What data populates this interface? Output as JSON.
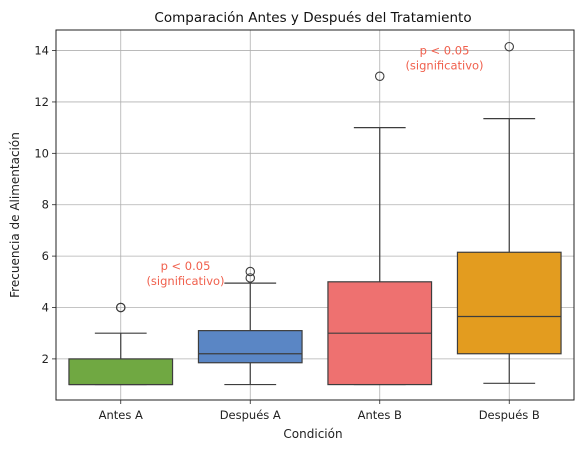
{
  "chart_data": {
    "type": "box",
    "title": "Comparación Antes y Después del Tratamiento",
    "xlabel": "Condición",
    "ylabel": "Frecuencia de Alimentación",
    "ylim": [
      0.4,
      14.8
    ],
    "yticks": [
      2,
      4,
      6,
      8,
      10,
      12,
      14
    ],
    "grid": true,
    "categories": [
      "Antes A",
      "Después A",
      "Antes B",
      "Después B"
    ],
    "boxes": [
      {
        "category": "Antes A",
        "color": "#70a842",
        "whisker_low": 1,
        "q1": 1,
        "median": 1,
        "q3": 2,
        "whisker_high": 3,
        "outliers": [
          4,
          4
        ]
      },
      {
        "category": "Después A",
        "color": "#5a86c5",
        "whisker_low": 1,
        "q1": 1.85,
        "median": 2.2,
        "q3": 3.1,
        "whisker_high": 4.95,
        "outliers": [
          5.15,
          5.4
        ]
      },
      {
        "category": "Antes B",
        "color": "#ee7170",
        "whisker_low": 1,
        "q1": 1,
        "median": 3,
        "q3": 5,
        "whisker_high": 11,
        "outliers": [
          13
        ]
      },
      {
        "category": "Después B",
        "color": "#e39c1f",
        "whisker_low": 1.05,
        "q1": 2.2,
        "median": 3.65,
        "q3": 6.15,
        "whisker_high": 11.35,
        "outliers": [
          14.15
        ]
      }
    ],
    "annotations": [
      {
        "lines": [
          "p < 0.05",
          "(significativo)"
        ],
        "color": "#f0604d",
        "category_index": 0.5,
        "y": 5.45
      },
      {
        "lines": [
          "p < 0.05",
          "(significativo)"
        ],
        "color": "#f0604d",
        "category_index": 2.5,
        "y": 13.85
      }
    ]
  }
}
